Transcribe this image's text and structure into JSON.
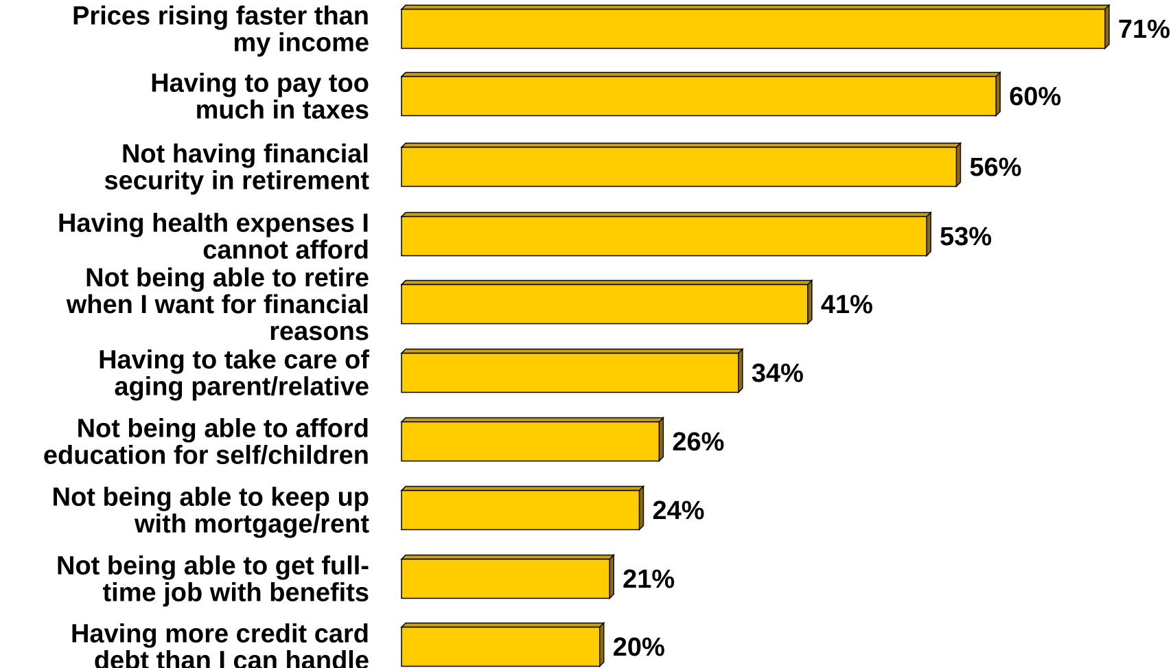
{
  "chart_data": {
    "type": "bar",
    "orientation": "horizontal",
    "categories": [
      [
        "Prices rising faster than",
        "my income"
      ],
      [
        "Having to pay too",
        "much in taxes"
      ],
      [
        "Not having financial",
        "security in retirement"
      ],
      [
        "Having health expenses I",
        "cannot afford"
      ],
      [
        "Not being able to retire",
        "when I want for financial",
        "reasons"
      ],
      [
        "Having to take care of",
        "aging parent/relative"
      ],
      [
        "Not being able to afford",
        "education for self/children"
      ],
      [
        "Not being able to keep up",
        "with mortgage/rent"
      ],
      [
        "Not being able to get full-",
        "time job with benefits"
      ],
      [
        "Having more credit card",
        "debt than I can handle"
      ]
    ],
    "values": [
      71,
      60,
      56,
      53,
      41,
      34,
      26,
      24,
      21,
      20
    ],
    "value_labels": [
      "71%",
      "60%",
      "56%",
      "53%",
      "41%",
      "34%",
      "26%",
      "24%",
      "21%",
      "20%"
    ],
    "unit": "%",
    "xlim": [
      0,
      71
    ],
    "grid": false,
    "legend": "none",
    "colors": {
      "bar_face": "#FFCC00",
      "bar_side": "#8C6E0A",
      "bar_top": "#C9A010",
      "outline": "#000000"
    }
  }
}
